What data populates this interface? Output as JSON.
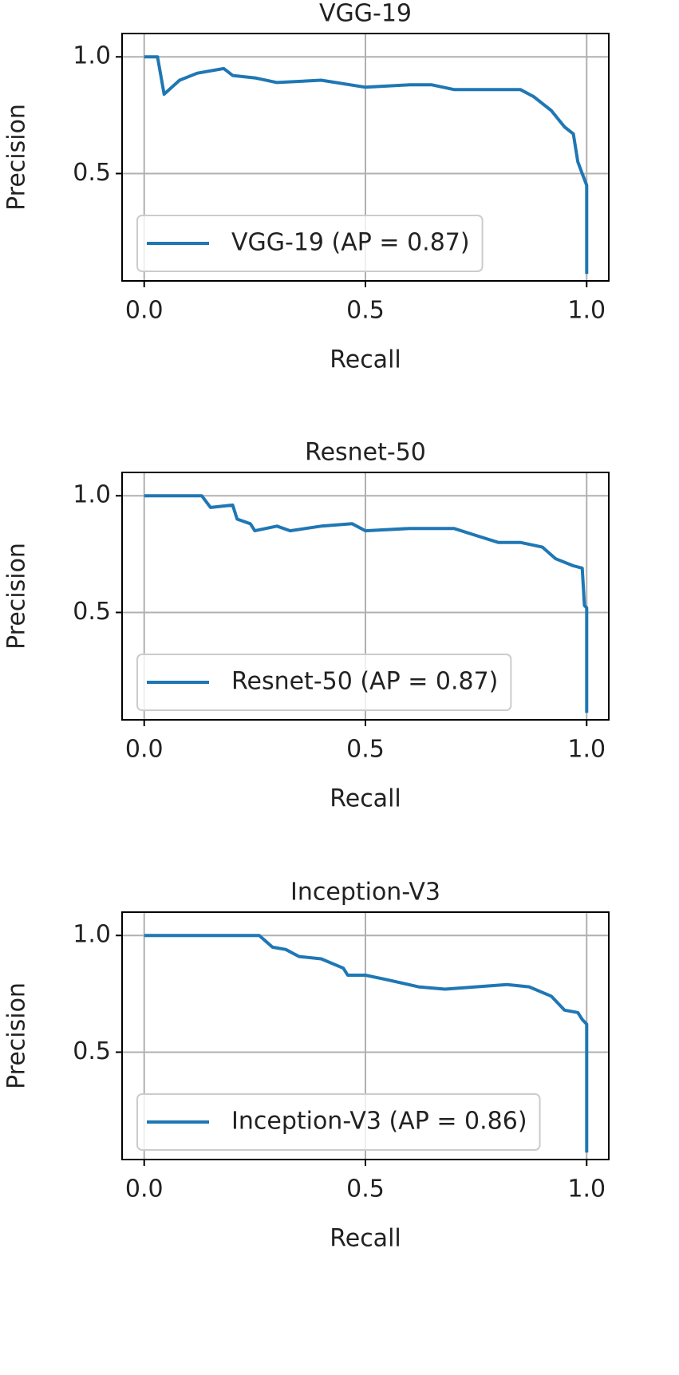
{
  "chart_data": [
    {
      "type": "line",
      "title": "VGG-19",
      "xlabel": "Recall",
      "ylabel": "Precision",
      "xlim": [
        -0.05,
        1.05
      ],
      "ylim": [
        0.04,
        1.1
      ],
      "xticks": [
        {
          "value": 0,
          "label": "0.0"
        },
        0.5,
        {
          "value": 1,
          "label": "1.0"
        }
      ],
      "yticks": [
        0.5,
        {
          "value": 1,
          "label": "1.0"
        }
      ],
      "grid": true,
      "legend": "lower left",
      "series": [
        {
          "name": "VGG-19 (AP = 0.87)",
          "color": "#1f77b4",
          "x": [
            0,
            0.03,
            0.045,
            0.08,
            0.12,
            0.18,
            0.2,
            0.25,
            0.3,
            0.4,
            0.5,
            0.6,
            0.65,
            0.7,
            0.8,
            0.85,
            0.88,
            0.92,
            0.95,
            0.97,
            0.98,
            0.99,
            1.0,
            1.0
          ],
          "values": [
            1.0,
            1.0,
            0.84,
            0.9,
            0.93,
            0.95,
            0.92,
            0.91,
            0.89,
            0.9,
            0.87,
            0.88,
            0.88,
            0.86,
            0.86,
            0.86,
            0.83,
            0.77,
            0.7,
            0.67,
            0.55,
            0.5,
            0.45,
            0.07
          ]
        }
      ]
    },
    {
      "type": "line",
      "title": "Resnet-50",
      "xlabel": "Recall",
      "ylabel": "Precision",
      "xlim": [
        -0.05,
        1.05
      ],
      "ylim": [
        0.04,
        1.1
      ],
      "xticks": [
        {
          "value": 0,
          "label": "0.0"
        },
        0.5,
        {
          "value": 1,
          "label": "1.0"
        }
      ],
      "yticks": [
        0.5,
        {
          "value": 1,
          "label": "1.0"
        }
      ],
      "grid": true,
      "legend": "lower left",
      "series": [
        {
          "name": "Resnet-50 (AP = 0.87)",
          "color": "#1f77b4",
          "x": [
            0,
            0.13,
            0.15,
            0.2,
            0.21,
            0.24,
            0.25,
            0.3,
            0.33,
            0.4,
            0.47,
            0.5,
            0.6,
            0.7,
            0.75,
            0.8,
            0.85,
            0.9,
            0.93,
            0.97,
            0.99,
            0.995,
            1.0,
            1.0
          ],
          "values": [
            1.0,
            1.0,
            0.95,
            0.96,
            0.9,
            0.88,
            0.85,
            0.87,
            0.85,
            0.87,
            0.88,
            0.85,
            0.86,
            0.86,
            0.83,
            0.8,
            0.8,
            0.78,
            0.73,
            0.7,
            0.69,
            0.53,
            0.52,
            0.07
          ]
        }
      ]
    },
    {
      "type": "line",
      "title": "Inception-V3",
      "xlabel": "Recall",
      "ylabel": "Precision",
      "xlim": [
        -0.05,
        1.05
      ],
      "ylim": [
        0.04,
        1.1
      ],
      "xticks": [
        {
          "value": 0,
          "label": "0.0"
        },
        0.5,
        {
          "value": 1,
          "label": "1.0"
        }
      ],
      "yticks": [
        0.5,
        {
          "value": 1,
          "label": "1.0"
        }
      ],
      "grid": true,
      "legend": "lower left",
      "series": [
        {
          "name": "Inception-V3 (AP = 0.86)",
          "color": "#1f77b4",
          "x": [
            0,
            0.26,
            0.29,
            0.32,
            0.35,
            0.4,
            0.45,
            0.46,
            0.5,
            0.55,
            0.62,
            0.68,
            0.75,
            0.82,
            0.87,
            0.92,
            0.95,
            0.98,
            0.99,
            1.0,
            1.0
          ],
          "values": [
            1.0,
            1.0,
            0.95,
            0.94,
            0.91,
            0.9,
            0.86,
            0.83,
            0.83,
            0.81,
            0.78,
            0.77,
            0.78,
            0.79,
            0.78,
            0.74,
            0.68,
            0.67,
            0.64,
            0.62,
            0.07
          ]
        }
      ]
    }
  ]
}
